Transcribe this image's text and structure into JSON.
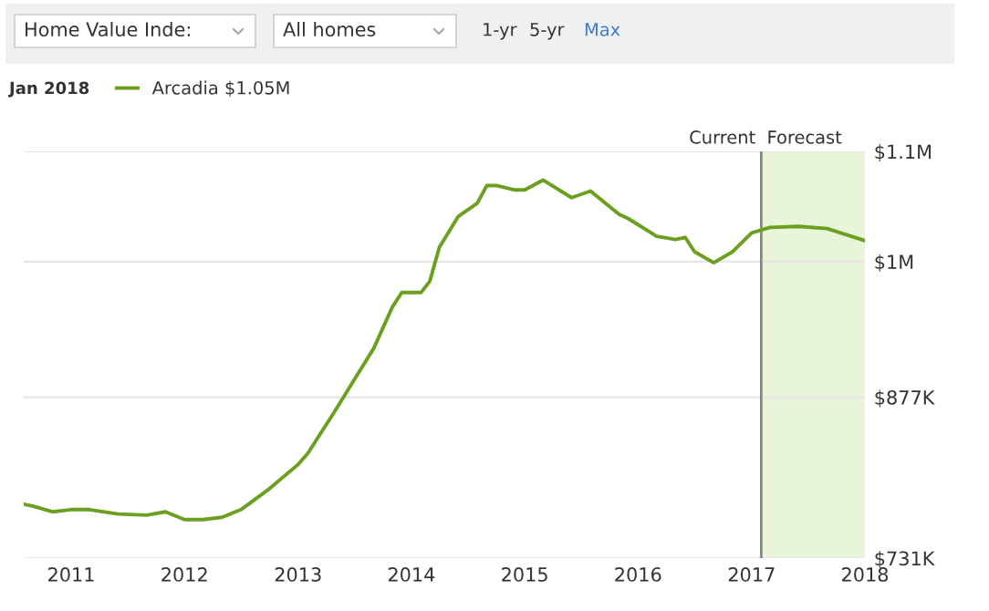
{
  "chart_data": {
    "type": "line",
    "annotations": [
      "Home Value Inde:",
      "All homes",
      "1-yr",
      "5-yr",
      "Max",
      "Jan 2018"
    ],
    "x": [
      "2010-08",
      "2010-09",
      "2010-11",
      "2011-01",
      "2011-03",
      "2011-06",
      "2011-09",
      "2011-11",
      "2012-01",
      "2012-03",
      "2012-05",
      "2012-07",
      "2012-10",
      "2013-01",
      "2013-02",
      "2013-05",
      "2013-07",
      "2013-09",
      "2013-11",
      "2013-12",
      "2014-02",
      "2014-03",
      "2014-04",
      "2014-06",
      "2014-08",
      "2014-09",
      "2014-10",
      "2014-12",
      "2015-01",
      "2015-03",
      "2015-06",
      "2015-08",
      "2015-11",
      "2015-12",
      "2016-03",
      "2016-05",
      "2016-06",
      "2016-07",
      "2016-09",
      "2016-11",
      "2017-01",
      "2017-03",
      "2017-06",
      "2017-09",
      "2018-01"
    ],
    "series": [
      {
        "name": "Arcadia $1.05M",
        "color": "#6a9f1f",
        "values": [
          780000,
          778000,
          773000,
          775000,
          775000,
          771000,
          770000,
          773000,
          766000,
          766000,
          768000,
          775000,
          794000,
          816000,
          826000,
          865000,
          893000,
          921000,
          959000,
          972000,
          972000,
          982000,
          1013000,
          1041000,
          1053000,
          1069000,
          1069000,
          1065000,
          1065000,
          1074000,
          1058000,
          1064000,
          1043000,
          1039000,
          1023000,
          1020000,
          1022000,
          1009000,
          999000,
          1009000,
          1026000,
          1031000,
          1032000,
          1030000,
          1019000
        ]
      }
    ],
    "xlim": [
      "2010-08",
      "2018-01"
    ],
    "xticks": [
      {
        "value": "2011-01",
        "label": "2011"
      },
      {
        "value": "2012-01",
        "label": "2012"
      },
      {
        "value": "2013-01",
        "label": "2013"
      },
      {
        "value": "2014-01",
        "label": "2014"
      },
      {
        "value": "2015-01",
        "label": "2015"
      },
      {
        "value": "2016-01",
        "label": "2016"
      },
      {
        "value": "2017-01",
        "label": "2017"
      },
      {
        "value": "2018-01",
        "label": "2018"
      }
    ],
    "ylim": [
      731000,
      1100000
    ],
    "yticks": [
      {
        "value": 731000,
        "label": "$731K"
      },
      {
        "value": 877000,
        "label": "$877K"
      },
      {
        "value": 1000000,
        "label": "$1M"
      },
      {
        "value": 1100000,
        "label": "$1.1M"
      }
    ],
    "ref_lines": [
      {
        "axis": "x",
        "value": "2017-02",
        "label": "Current",
        "color": "#888888"
      }
    ],
    "bands": [
      {
        "axis": "x",
        "from": "2017-02",
        "to": "2018-01",
        "label": "Forecast",
        "color": "#e8f5d8"
      }
    ],
    "grid": "y",
    "legend": "top left",
    "marker": "none",
    "line_style": "solid"
  }
}
